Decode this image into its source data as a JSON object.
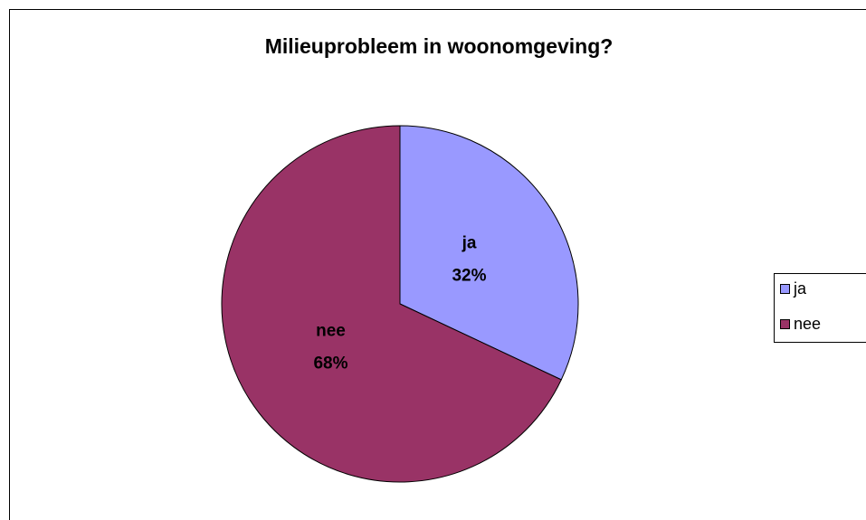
{
  "chart_data": {
    "type": "pie",
    "title": "Milieuprobleem in woonomgeving?",
    "categories": [
      "ja",
      "nee"
    ],
    "values": [
      32,
      68
    ],
    "value_labels": [
      "32%",
      "68%"
    ],
    "colors": [
      "#9999ff",
      "#993366"
    ],
    "legend": "right"
  }
}
